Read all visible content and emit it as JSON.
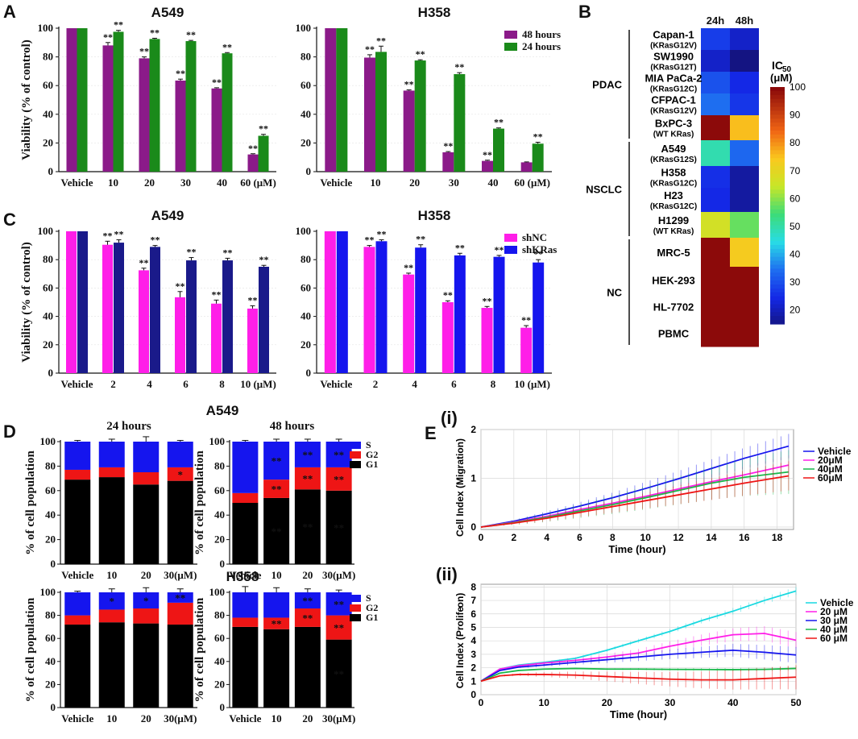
{
  "colors": {
    "purple": "#8b1a89",
    "green": "#1a8a1a",
    "magenta": "#ff1ee8",
    "navy": "#1a1a8a",
    "blue": "#1515ee",
    "red": "#ee1515",
    "black": "#000000",
    "cyan": "#19d9e0",
    "grid": "#cccccc"
  },
  "panels": {
    "A": "A",
    "B": "B",
    "C": "C",
    "D": "D",
    "E": "E",
    "Ei": "(i)",
    "Eii": "(ii)"
  },
  "chart_data": [
    {
      "id": "A-A549",
      "type": "bar",
      "title": "A549",
      "ylabel": "Viability (% of control)",
      "ylim": [
        0,
        100
      ],
      "yticks": [
        0,
        20,
        40,
        60,
        80,
        100
      ],
      "categories": [
        "Vehicle",
        "10",
        "20",
        "30",
        "40",
        "60 (μM)"
      ],
      "series": [
        {
          "name": "48 hours",
          "color": "#8b1a89",
          "values": [
            100,
            88,
            79,
            63.5,
            58,
            12
          ],
          "err": [
            0,
            2,
            1,
            1,
            0.5,
            0.5
          ],
          "sig": [
            "",
            "**",
            "**",
            "**",
            "**",
            "**"
          ]
        },
        {
          "name": "24 hours",
          "color": "#1a8a1a",
          "values": [
            100,
            97.5,
            92.5,
            91,
            82.5,
            25
          ],
          "err": [
            0,
            1,
            0.5,
            0.5,
            0.5,
            1
          ],
          "sig": [
            "",
            "**",
            "**",
            "**",
            "**",
            "**"
          ]
        }
      ]
    },
    {
      "id": "A-H358",
      "type": "bar",
      "title": "H358",
      "ylabel": "",
      "ylim": [
        0,
        100
      ],
      "yticks": [
        0,
        20,
        40,
        60,
        80,
        100
      ],
      "categories": [
        "Vehicle",
        "10",
        "20",
        "30",
        "40",
        "60 (μM)"
      ],
      "legend": {
        "position": "top-right",
        "entries": [
          "48 hours",
          "24 hours"
        ]
      },
      "series": [
        {
          "name": "48 hours",
          "color": "#8b1a89",
          "values": [
            100,
            79.5,
            56.5,
            13.5,
            7.5,
            6.5
          ],
          "err": [
            0,
            2,
            0.5,
            0.5,
            0.5,
            0.3
          ],
          "sig": [
            "",
            "**",
            "**",
            "**",
            "**",
            ""
          ]
        },
        {
          "name": "24 hours",
          "color": "#1a8a1a",
          "values": [
            100,
            83.5,
            77.5,
            68,
            30,
            19.5
          ],
          "err": [
            0,
            4,
            0.5,
            1,
            0.5,
            1
          ],
          "sig": [
            "",
            "**",
            "**",
            "**",
            "**",
            "**"
          ]
        }
      ]
    },
    {
      "id": "C-A549",
      "type": "bar",
      "title": "A549",
      "ylabel": "Viability (% of control)",
      "ylim": [
        0,
        100
      ],
      "yticks": [
        0,
        20,
        40,
        60,
        80,
        100
      ],
      "categories": [
        "Vehicle",
        "2",
        "4",
        "6",
        "8",
        "10 (μM)"
      ],
      "series": [
        {
          "name": "shNC",
          "color": "#ff1ee8",
          "values": [
            100,
            90.5,
            72.5,
            53.5,
            49,
            45.5
          ],
          "err": [
            0,
            2.5,
            1.5,
            4,
            2.5,
            2
          ],
          "sig": [
            "",
            "**",
            "**",
            "**",
            "**",
            "**"
          ]
        },
        {
          "name": "shKRas",
          "color": "#1a1a8a",
          "values": [
            100,
            92,
            89,
            79.5,
            79.5,
            75
          ],
          "err": [
            0,
            2,
            1,
            2,
            1.5,
            1
          ],
          "sig": [
            "",
            "**",
            "**",
            "**",
            "**",
            "**"
          ]
        }
      ]
    },
    {
      "id": "C-H358",
      "type": "bar",
      "title": "H358",
      "ylabel": "",
      "ylim": [
        0,
        100
      ],
      "yticks": [
        0,
        20,
        40,
        60,
        80,
        100
      ],
      "categories": [
        "Vehicle",
        "2",
        "4",
        "6",
        "8",
        "10 (μM)"
      ],
      "legend": {
        "position": "top-right",
        "entries": [
          "shNC",
          "shKRas"
        ]
      },
      "series": [
        {
          "name": "shNC",
          "color": "#ff1ee8",
          "values": [
            100,
            89,
            69.5,
            50,
            46,
            32
          ],
          "err": [
            0,
            1,
            1,
            1,
            1,
            1.5
          ],
          "sig": [
            "",
            "**",
            "**",
            "**",
            "**",
            "**"
          ]
        },
        {
          "name": "shKRas",
          "color": "#1515ee",
          "values": [
            100,
            93,
            88.5,
            83,
            82,
            78
          ],
          "err": [
            0,
            1,
            2,
            1.5,
            1,
            2
          ],
          "sig": [
            "",
            "**",
            "**",
            "**",
            "**",
            "**"
          ]
        }
      ]
    },
    {
      "id": "B-heatmap",
      "type": "heatmap",
      "columns": [
        "24h",
        "48h"
      ],
      "colorbar": {
        "label": "IC",
        "label_sub": "50",
        "unit": "(μM)",
        "range": [
          15,
          100
        ],
        "ticks": [
          20,
          30,
          40,
          50,
          60,
          70,
          80,
          90,
          100
        ]
      },
      "groups": [
        {
          "name": "PDAC",
          "rows": [
            0,
            4
          ]
        },
        {
          "name": "NSCLC",
          "rows": [
            5,
            8
          ]
        },
        {
          "name": "NC",
          "rows": [
            9,
            12
          ]
        }
      ],
      "rows": [
        {
          "name": "Capan-1",
          "sub": "(KRasG12V)",
          "values": [
            28,
            22
          ]
        },
        {
          "name": "SW1990",
          "sub": "(KRasG12T)",
          "values": [
            22,
            15
          ]
        },
        {
          "name": "MIA PaCa-2",
          "sub": "(KRasG12C)",
          "values": [
            31,
            25
          ]
        },
        {
          "name": "CFPAC-1",
          "sub": "(KRasG12V)",
          "values": [
            35,
            27
          ]
        },
        {
          "name": "BxPC-3",
          "sub": "(WT KRas)",
          "values": [
            100,
            76
          ]
        },
        {
          "name": "A549",
          "sub": "(KRasG12S)",
          "values": [
            50,
            34
          ]
        },
        {
          "name": "H358",
          "sub": "(KRasG12C)",
          "values": [
            26,
            18
          ]
        },
        {
          "name": "H23",
          "sub": "(KRasG12C)",
          "values": [
            25,
            18
          ]
        },
        {
          "name": "H1299",
          "sub": "(WT KRas)",
          "values": [
            67,
            58
          ]
        },
        {
          "name": "MRC-5",
          "sub": "",
          "values": [
            100,
            74
          ]
        },
        {
          "name": "HEK-293",
          "sub": "",
          "values": [
            100,
            100
          ]
        },
        {
          "name": "HL-7702",
          "sub": "",
          "values": [
            100,
            100
          ]
        },
        {
          "name": "PBMC",
          "sub": "",
          "values": [
            100,
            100
          ]
        }
      ]
    },
    {
      "id": "D-24h",
      "type": "bar",
      "stacked": true,
      "title": "24 hours",
      "group_title": "A549",
      "ylabel": "% of cell population",
      "ylim": [
        0,
        100
      ],
      "yticks": [
        0,
        20,
        40,
        60,
        80,
        100
      ],
      "categories": [
        "Vehicle",
        "10",
        "20",
        "30(μM)"
      ],
      "series": [
        {
          "name": "G1",
          "color": "#000000",
          "values": [
            69,
            71,
            65,
            68
          ]
        },
        {
          "name": "G2",
          "color": "#ee1515",
          "values": [
            8,
            8,
            10,
            11
          ]
        },
        {
          "name": "S",
          "color": "#1515ee",
          "values": [
            23,
            21,
            25,
            21
          ]
        }
      ],
      "top_err": [
        1,
        2,
        4,
        1
      ],
      "sig": [
        [
          "",
          "",
          "",
          ""
        ],
        [
          "",
          "",
          "",
          "*"
        ],
        [
          "",
          "",
          "",
          ""
        ]
      ]
    },
    {
      "id": "D-48h",
      "type": "bar",
      "stacked": true,
      "title": "48 hours",
      "ylabel": "% of cell population",
      "ylim": [
        0,
        100
      ],
      "yticks": [
        0,
        20,
        40,
        60,
        80,
        100
      ],
      "categories": [
        "Vehicle",
        "10",
        "20",
        "30(μM)"
      ],
      "legend": {
        "position": "top-right",
        "entries": [
          "S",
          "G2",
          "G1"
        ]
      },
      "series": [
        {
          "name": "G1",
          "color": "#000000",
          "values": [
            50,
            54,
            61,
            60
          ]
        },
        {
          "name": "G2",
          "color": "#ee1515",
          "values": [
            8,
            15,
            18,
            19
          ]
        },
        {
          "name": "S",
          "color": "#1515ee",
          "values": [
            42,
            31,
            21,
            21
          ]
        }
      ],
      "top_err": [
        1,
        2,
        2,
        2
      ],
      "sig": [
        [
          "",
          "**",
          "**",
          "**"
        ],
        [
          "",
          "**",
          "**",
          "**"
        ],
        [
          "",
          "**",
          "**",
          "**"
        ]
      ]
    },
    {
      "id": "D-H358-24h",
      "type": "bar",
      "stacked": true,
      "title": "",
      "ylabel": "% of cell population",
      "ylim": [
        0,
        100
      ],
      "yticks": [
        0,
        20,
        40,
        60,
        80,
        100
      ],
      "categories": [
        "Vehicle",
        "10",
        "20",
        "30(μM)"
      ],
      "series": [
        {
          "name": "G1",
          "color": "#000000",
          "values": [
            72,
            74,
            73,
            72
          ]
        },
        {
          "name": "G2",
          "color": "#ee1515",
          "values": [
            8,
            11,
            13,
            19
          ]
        },
        {
          "name": "S",
          "color": "#1515ee",
          "values": [
            20,
            15,
            14,
            9
          ]
        }
      ],
      "top_err": [
        1,
        3,
        4,
        3
      ],
      "sig": [
        [
          "",
          "",
          "",
          ""
        ],
        [
          "",
          "",
          "",
          ""
        ],
        [
          "",
          "*",
          "*",
          "**"
        ]
      ]
    },
    {
      "id": "D-H358-48h",
      "type": "bar",
      "stacked": true,
      "title": "",
      "group_title": "H358",
      "ylabel": "% of cell population",
      "ylim": [
        0,
        100
      ],
      "yticks": [
        0,
        20,
        40,
        60,
        80,
        100
      ],
      "categories": [
        "Vehicle",
        "10",
        "20",
        "30(μM)"
      ],
      "legend": {
        "position": "top-right",
        "entries": [
          "S",
          "G2",
          "G1"
        ]
      },
      "series": [
        {
          "name": "G1",
          "color": "#000000",
          "values": [
            70,
            68,
            70,
            59
          ]
        },
        {
          "name": "G2",
          "color": "#ee1515",
          "values": [
            8,
            10,
            16,
            21
          ]
        },
        {
          "name": "S",
          "color": "#1515ee",
          "values": [
            22,
            22,
            14,
            20
          ]
        }
      ],
      "top_err": [
        5,
        4,
        3,
        2
      ],
      "sig": [
        [
          "",
          "",
          "",
          "**"
        ],
        [
          "",
          "**",
          "**",
          "**"
        ],
        [
          "",
          "",
          "**",
          "**"
        ]
      ]
    },
    {
      "id": "E-migration",
      "type": "line",
      "xlabel": "Time (hour)",
      "ylabel": "Cell Index (Migration)",
      "xlim": [
        0,
        19
      ],
      "ylim": [
        -0.05,
        2
      ],
      "xticks": [
        0,
        2,
        4,
        6,
        8,
        10,
        12,
        14,
        16,
        18
      ],
      "yticks": [
        0,
        1,
        2
      ],
      "x": [
        0,
        2,
        4,
        6,
        8,
        10,
        12,
        14,
        16,
        18.7
      ],
      "series": [
        {
          "name": "Vehicle",
          "color": "#1515ee",
          "values": [
            0,
            0.12,
            0.27,
            0.43,
            0.6,
            0.79,
            0.99,
            1.2,
            1.41,
            1.66
          ],
          "err": 0.25
        },
        {
          "name": "20μM",
          "color": "#ff1ee8",
          "values": [
            0,
            0.1,
            0.22,
            0.36,
            0.49,
            0.63,
            0.78,
            0.93,
            1.07,
            1.27
          ],
          "err": 0.2
        },
        {
          "name": "40μM",
          "color": "#19b84a",
          "values": [
            0,
            0.09,
            0.2,
            0.33,
            0.46,
            0.6,
            0.75,
            0.9,
            1.02,
            1.13
          ],
          "err": 0.45
        },
        {
          "name": "60μM",
          "color": "#ee1515",
          "values": [
            0,
            0.08,
            0.18,
            0.3,
            0.42,
            0.54,
            0.66,
            0.78,
            0.9,
            1.05
          ],
          "err": 0.3
        }
      ]
    },
    {
      "id": "E-proliferation",
      "type": "line",
      "xlabel": "Time (hour)",
      "ylabel": "Cell Index (Prolife",
      "ylabel_top": "on)",
      "xlim": [
        0,
        50
      ],
      "ylim": [
        0,
        8.2
      ],
      "xticks": [
        0,
        10,
        20,
        30,
        40,
        50
      ],
      "yticks": [
        0,
        1,
        2,
        3,
        4,
        5,
        6,
        7,
        8
      ],
      "x": [
        0,
        3,
        6,
        10,
        15,
        20,
        25,
        30,
        35,
        40,
        45,
        50
      ],
      "series": [
        {
          "name": "Vehicle",
          "color": "#19d9e0",
          "values": [
            1.0,
            1.9,
            2.2,
            2.4,
            2.7,
            3.3,
            4.0,
            4.7,
            5.5,
            6.2,
            7.0,
            7.7
          ],
          "err": 0.3
        },
        {
          "name": "20 μM",
          "color": "#ff1ee8",
          "values": [
            1.0,
            1.9,
            2.15,
            2.35,
            2.55,
            2.8,
            3.1,
            3.6,
            4.05,
            4.45,
            4.55,
            4.05
          ],
          "err": 0.6
        },
        {
          "name": "30 μM",
          "color": "#1515ee",
          "values": [
            1.0,
            1.8,
            2.05,
            2.2,
            2.4,
            2.6,
            2.8,
            3.0,
            3.15,
            3.3,
            3.15,
            2.95
          ],
          "err": 0.6
        },
        {
          "name": "40 μM",
          "color": "#19b84a",
          "values": [
            1.0,
            1.6,
            1.8,
            1.9,
            1.95,
            1.9,
            1.9,
            1.88,
            1.87,
            1.86,
            1.88,
            1.95
          ],
          "err": 0.15
        },
        {
          "name": "60 μM",
          "color": "#ee1515",
          "values": [
            1.0,
            1.4,
            1.5,
            1.5,
            1.45,
            1.35,
            1.25,
            1.15,
            1.1,
            1.1,
            1.2,
            1.3
          ],
          "err": 0.9
        }
      ]
    }
  ]
}
